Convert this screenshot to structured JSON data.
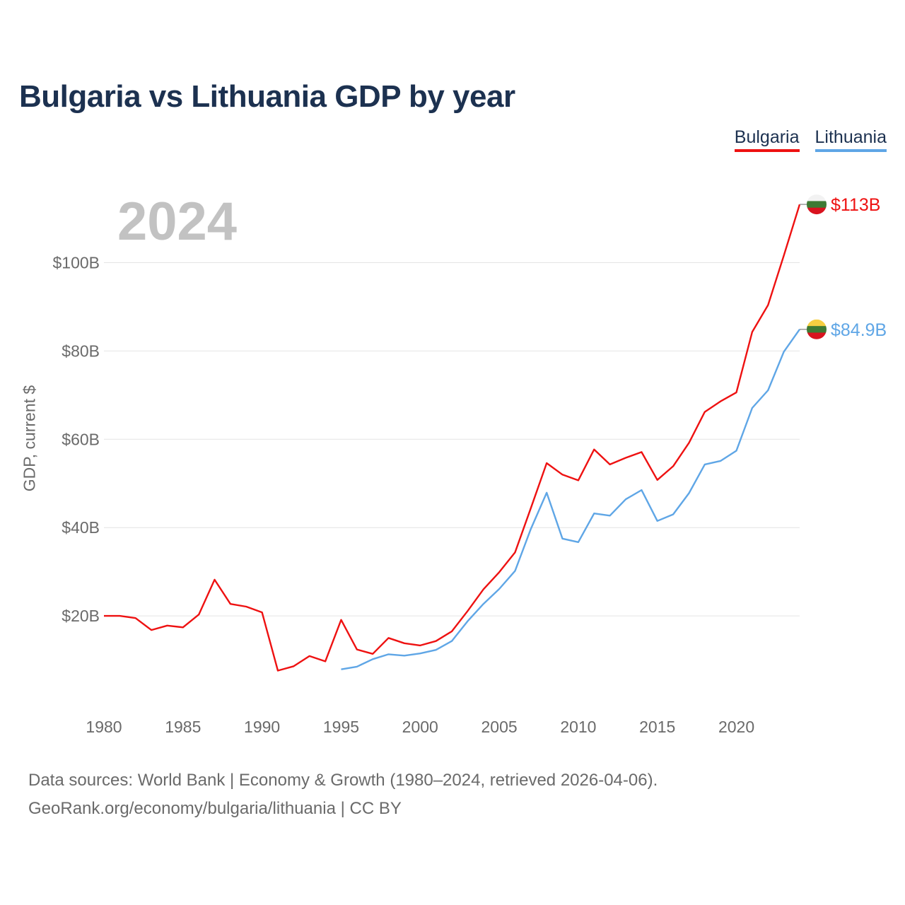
{
  "title": "Bulgaria vs Lithuania GDP by year",
  "year_watermark": "2024",
  "y_axis_label": "GDP, current $",
  "legend": [
    {
      "name": "Bulgaria",
      "color": "#ee1111"
    },
    {
      "name": "Lithuania",
      "color": "#5fa6e6"
    }
  ],
  "source_line1": "Data sources: World Bank | Economy & Growth (1980–2024, retrieved 2026-04-06).",
  "source_line2": "GeoRank.org/economy/bulgaria/lithuania | CC BY",
  "chart_data": {
    "type": "line",
    "title": "Bulgaria vs Lithuania GDP by year",
    "xlabel": "",
    "ylabel": "GDP, current $",
    "xlim": [
      1980,
      2024
    ],
    "ylim": [
      0,
      120
    ],
    "y_unit": "billion USD",
    "x_ticks": [
      1980,
      1985,
      1990,
      1995,
      2000,
      2005,
      2010,
      2015,
      2020
    ],
    "y_ticks": [
      {
        "value": 20,
        "label": "$20B"
      },
      {
        "value": 40,
        "label": "$40B"
      },
      {
        "value": 60,
        "label": "$60B"
      },
      {
        "value": 80,
        "label": "$80B"
      },
      {
        "value": 100,
        "label": "$100B"
      }
    ],
    "grid": true,
    "series": [
      {
        "name": "Bulgaria",
        "color": "#ee1111",
        "end_label": "$113B",
        "x": [
          1980,
          1981,
          1982,
          1983,
          1984,
          1985,
          1986,
          1987,
          1988,
          1989,
          1990,
          1991,
          1992,
          1993,
          1994,
          1995,
          1996,
          1997,
          1998,
          1999,
          2000,
          2001,
          2002,
          2003,
          2004,
          2005,
          2006,
          2007,
          2008,
          2009,
          2010,
          2011,
          2012,
          2013,
          2014,
          2015,
          2016,
          2017,
          2018,
          2019,
          2020,
          2021,
          2022,
          2023,
          2024
        ],
        "values": [
          20.0,
          20.0,
          19.5,
          16.8,
          17.8,
          17.4,
          20.3,
          28.2,
          22.7,
          22.1,
          20.8,
          7.6,
          8.6,
          10.9,
          9.7,
          19.1,
          12.4,
          11.4,
          15.0,
          13.8,
          13.3,
          14.3,
          16.5,
          21.1,
          26.0,
          29.9,
          34.4,
          44.4,
          54.6,
          52.0,
          50.7,
          57.7,
          54.3,
          55.8,
          57.1,
          50.8,
          53.9,
          59.2,
          66.2,
          68.6,
          70.6,
          84.3,
          90.4,
          101.6,
          113.2
        ]
      },
      {
        "name": "Lithuania",
        "color": "#5fa6e6",
        "end_label": "$84.9B",
        "x": [
          1995,
          1996,
          1997,
          1998,
          1999,
          2000,
          2001,
          2002,
          2003,
          2004,
          2005,
          2006,
          2007,
          2008,
          2009,
          2010,
          2011,
          2012,
          2013,
          2014,
          2015,
          2016,
          2017,
          2018,
          2019,
          2020,
          2021,
          2022,
          2023,
          2024
        ],
        "values": [
          7.9,
          8.5,
          10.2,
          11.3,
          11.0,
          11.5,
          12.3,
          14.3,
          18.8,
          22.7,
          26.1,
          30.2,
          39.7,
          47.9,
          37.5,
          36.7,
          43.2,
          42.7,
          46.4,
          48.5,
          41.5,
          43.0,
          47.8,
          54.3,
          55.1,
          57.4,
          67.1,
          71.1,
          79.8,
          84.9
        ]
      }
    ]
  }
}
